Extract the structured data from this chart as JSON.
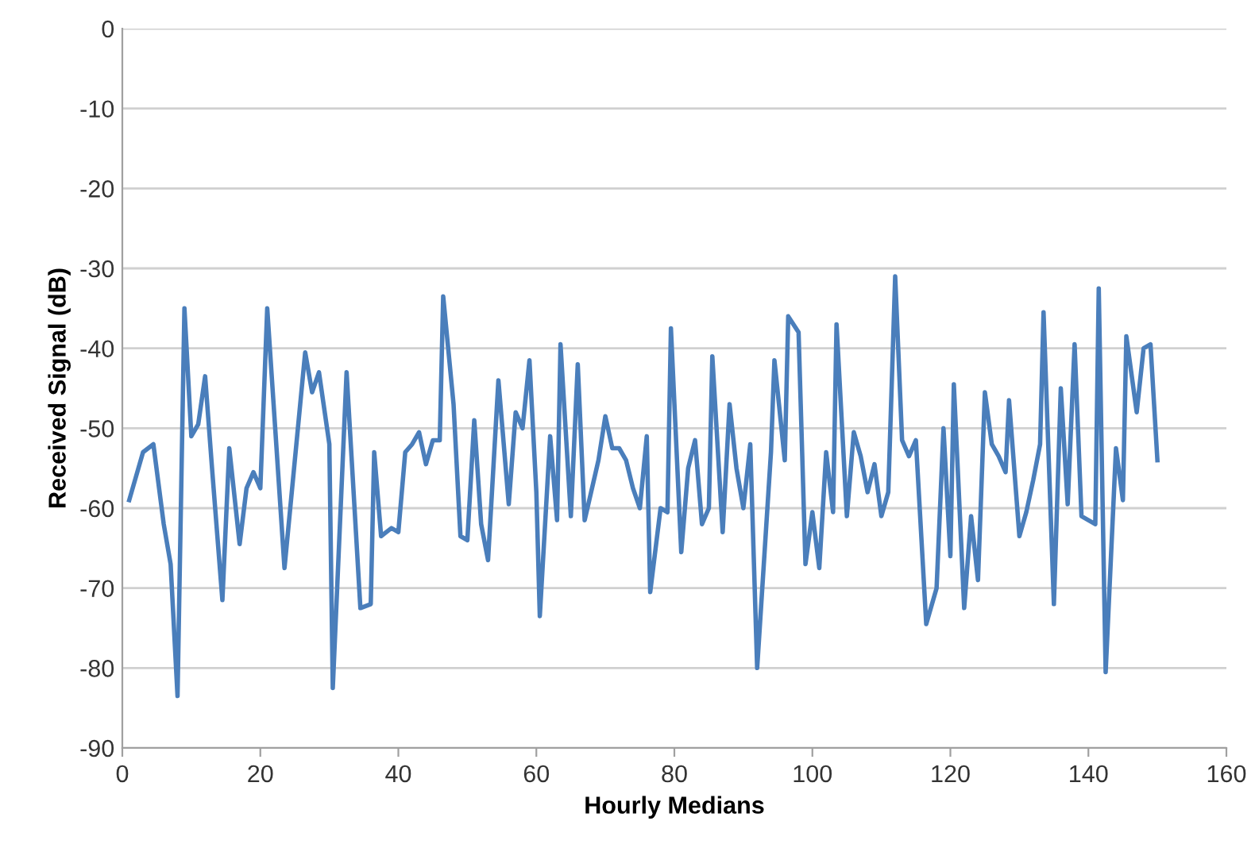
{
  "chart_data": {
    "type": "line",
    "xlabel": "Hourly Medians",
    "ylabel": "Received Signal (dB)",
    "x": [
      1,
      3,
      4.5,
      6,
      7,
      8,
      9,
      10,
      11,
      12,
      13,
      14.5,
      15.5,
      17,
      18,
      19,
      20,
      21,
      23.5,
      26.5,
      27.5,
      28.5,
      30,
      30.5,
      32.5,
      34.5,
      36,
      36.5,
      37.5,
      39,
      40,
      41,
      42,
      43,
      44,
      45,
      46,
      46.5,
      48,
      49,
      50,
      51,
      52,
      53,
      54.5,
      56,
      57,
      58,
      59,
      60,
      60.5,
      62,
      63,
      63.5,
      65,
      66,
      67,
      69,
      70,
      71,
      72,
      73,
      74,
      75,
      76,
      76.5,
      78,
      79,
      79.5,
      81,
      82,
      83,
      84,
      85,
      85.5,
      87,
      88,
      89,
      90,
      91,
      92,
      94,
      94.5,
      96,
      96.5,
      98,
      99,
      100,
      101,
      102,
      103,
      103.5,
      105,
      106,
      107,
      108,
      109,
      110,
      111,
      112,
      113,
      114,
      115,
      116.5,
      118,
      119,
      120,
      120.5,
      122,
      123,
      124,
      125,
      126,
      127,
      128,
      128.5,
      130,
      131,
      132,
      133,
      133.5,
      135,
      136,
      137,
      138,
      139,
      140,
      141,
      141.5,
      142.5,
      144,
      145,
      145.5,
      147,
      148,
      149,
      150
    ],
    "series": [
      {
        "color": "#4a7ebb",
        "values": [
          -59,
          -53,
          -52,
          -62,
          -67,
          -83.5,
          -35,
          -51,
          -49.5,
          -43.5,
          -55,
          -71.5,
          -52.5,
          -64.5,
          -57.5,
          -55.5,
          -57.5,
          -35,
          -67.5,
          -40.5,
          -45.5,
          -43,
          -52,
          -82.5,
          -43,
          -72.5,
          -72,
          -53,
          -63.5,
          -62.5,
          -63,
          -53,
          -52,
          -50.5,
          -54.5,
          -51.5,
          -51.5,
          -33.5,
          -47,
          -63.5,
          -64,
          -49,
          -62,
          -66.5,
          -44,
          -59.5,
          -48,
          -50,
          -41.5,
          -58,
          -73.5,
          -51,
          -61.5,
          -39.5,
          -61,
          -42,
          -61.5,
          -54,
          -48.5,
          -52.5,
          -52.5,
          -54,
          -57.5,
          -60,
          -51,
          -70.5,
          -60,
          -60.5,
          -37.5,
          -65.5,
          -55,
          -51.5,
          -62,
          -60,
          -41,
          -63,
          -47,
          -55,
          -60,
          -52,
          -80,
          -53,
          -41.5,
          -54,
          -36,
          -38,
          -67,
          -60.5,
          -67.5,
          -53,
          -60.5,
          -37,
          -61,
          -50.5,
          -53.5,
          -58,
          -54.5,
          -61,
          -58,
          -31,
          -51.5,
          -53.5,
          -51.5,
          -74.5,
          -70,
          -50,
          -66,
          -44.5,
          -72.5,
          -61,
          -69,
          -45.5,
          -52,
          -53.5,
          -55.5,
          -46.5,
          -63.5,
          -60.5,
          -56.5,
          -52,
          -35.5,
          -72,
          -45,
          -59.5,
          -39.5,
          -61,
          -61.5,
          -62,
          -32.5,
          -80.5,
          -52.5,
          -59,
          -38.5,
          -48,
          -40,
          -39.5,
          -54
        ]
      }
    ],
    "xlim": [
      0,
      160
    ],
    "xticks": [
      0,
      20,
      40,
      60,
      80,
      100,
      120,
      140,
      160
    ],
    "ylim": [
      -90,
      0
    ],
    "yticks": [
      -90,
      -80,
      -70,
      -60,
      -50,
      -40,
      -30,
      -20,
      -10,
      0
    ],
    "grid": "y",
    "legend": false
  }
}
